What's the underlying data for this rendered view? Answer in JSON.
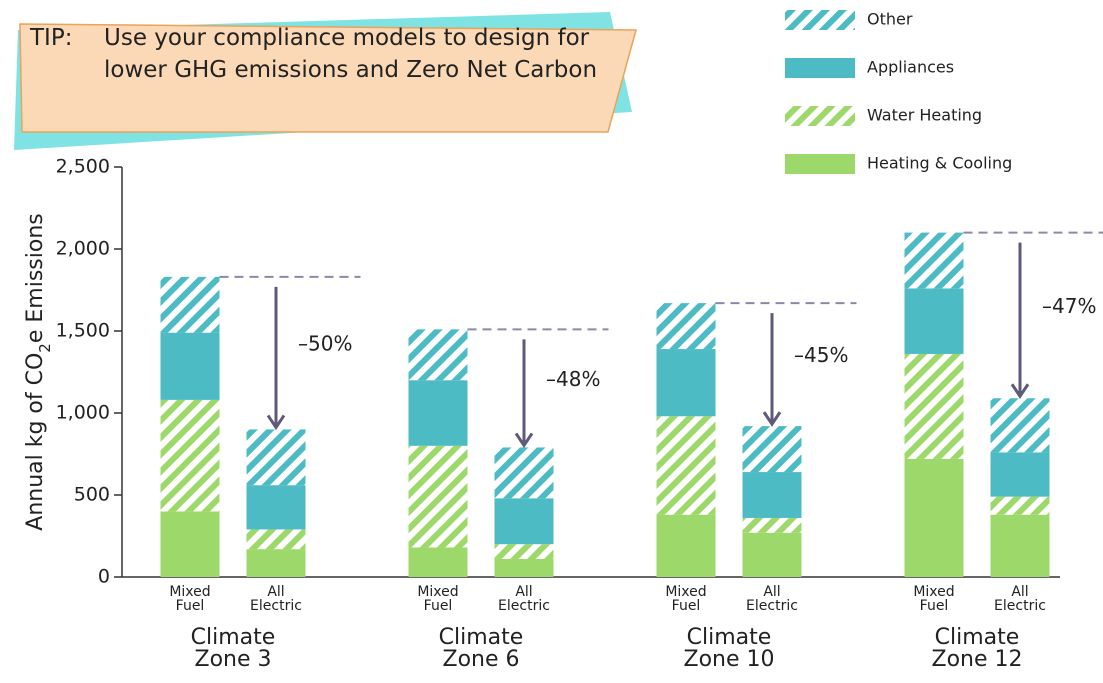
{
  "chart_data": {
    "type": "stacked_bar",
    "tip": {
      "head": "TIP:",
      "text": "Use your compliance models to design for lower GHG emissions and Zero Net Carbon"
    },
    "y_label": [
      "Annual kg of CO",
      "2",
      "e Emissions"
    ],
    "groups": [
      "Climate Zone 3",
      "Climate Zone 6",
      "Climate Zone 10",
      "Climate Zone 12"
    ],
    "categories": [
      "Mixed Fuel",
      "All Electric",
      "Mixed Fuel",
      "All Electric",
      "Mixed Fuel",
      "All Electric",
      "Mixed Fuel",
      "All Electric"
    ],
    "series": [
      {
        "name": "Heating & Cooling",
        "color": "#9dd96a",
        "hatch": false,
        "values": [
          400,
          170,
          180,
          110,
          380,
          270,
          720,
          380
        ]
      },
      {
        "name": "Water Heating",
        "color": "#9dd96a",
        "hatch": true,
        "values": [
          680,
          120,
          620,
          90,
          600,
          90,
          640,
          110
        ]
      },
      {
        "name": "Appliances",
        "color": "#4dbbc3",
        "hatch": false,
        "values": [
          410,
          270,
          400,
          280,
          410,
          280,
          400,
          270
        ]
      },
      {
        "name": "Other",
        "color": "#4dbbc3",
        "hatch": true,
        "values": [
          340,
          340,
          310,
          310,
          280,
          280,
          340,
          330
        ]
      }
    ],
    "reductions": {
      "values": [
        -50,
        -48,
        -45,
        -47
      ],
      "value_labels": [
        "–50%",
        "–48%",
        "–45%",
        "–47%"
      ]
    },
    "ylim": [
      0,
      2500
    ],
    "yticks": [
      0,
      500,
      {
        "value": 1000,
        "label": "1,000"
      },
      {
        "value": 1500,
        "label": "1,500"
      },
      {
        "value": 2000,
        "label": "2,000"
      },
      {
        "value": 2500,
        "label": "2,500"
      }
    ],
    "legend": "top-right"
  }
}
